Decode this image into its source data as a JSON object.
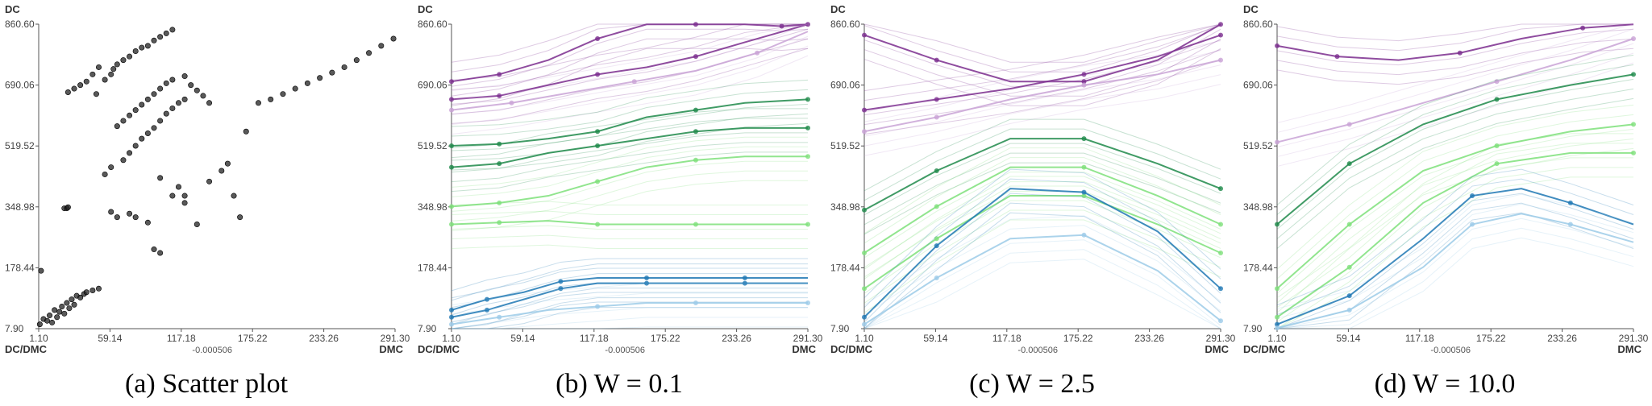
{
  "axes": {
    "y_top_label": "DC",
    "x_right_label": "DMC",
    "corner_label": "DC/DMC",
    "center_note": "-0.000506",
    "x_ticks": [
      "1.10",
      "59.14",
      "117.18",
      "175.22",
      "233.26",
      "291.30"
    ],
    "y_ticks": [
      "7.90",
      "178.44",
      "348.98",
      "519.52",
      "690.06",
      "860.60"
    ]
  },
  "colors": {
    "purple": "#7b2d8e",
    "purple_light": "#c9a3d6",
    "green": "#1e8a4a",
    "green_light": "#7ee07a",
    "blue": "#1f78b4",
    "blue_light": "#9ccbe8",
    "scatter": "#222222"
  },
  "chart_data": [
    {
      "type": "scatter",
      "caption": "(a) Scatter plot",
      "xlabel": "DMC",
      "ylabel": "DC",
      "xlim": [
        1.1,
        291.3
      ],
      "ylim": [
        7.9,
        860.6
      ],
      "points": [
        [
          2,
          20
        ],
        [
          5,
          35
        ],
        [
          8,
          30
        ],
        [
          10,
          45
        ],
        [
          12,
          25
        ],
        [
          14,
          60
        ],
        [
          16,
          40
        ],
        [
          18,
          55
        ],
        [
          20,
          70
        ],
        [
          22,
          50
        ],
        [
          24,
          80
        ],
        [
          26,
          65
        ],
        [
          28,
          90
        ],
        [
          30,
          75
        ],
        [
          32,
          100
        ],
        [
          35,
          95
        ],
        [
          38,
          105
        ],
        [
          40,
          110
        ],
        [
          45,
          115
        ],
        [
          50,
          120
        ],
        [
          3,
          170
        ],
        [
          22,
          345
        ],
        [
          24,
          345
        ],
        [
          25,
          348
        ],
        [
          25,
          670
        ],
        [
          30,
          680
        ],
        [
          35,
          690
        ],
        [
          40,
          700
        ],
        [
          45,
          720
        ],
        [
          48,
          665
        ],
        [
          50,
          740
        ],
        [
          55,
          705
        ],
        [
          60,
          720
        ],
        [
          62,
          735
        ],
        [
          65,
          748
        ],
        [
          70,
          760
        ],
        [
          75,
          770
        ],
        [
          80,
          785
        ],
        [
          85,
          795
        ],
        [
          90,
          800
        ],
        [
          95,
          815
        ],
        [
          100,
          825
        ],
        [
          105,
          835
        ],
        [
          110,
          845
        ],
        [
          65,
          575
        ],
        [
          70,
          590
        ],
        [
          75,
          605
        ],
        [
          80,
          620
        ],
        [
          85,
          635
        ],
        [
          90,
          650
        ],
        [
          95,
          665
        ],
        [
          100,
          680
        ],
        [
          105,
          695
        ],
        [
          110,
          705
        ],
        [
          120,
          715
        ],
        [
          125,
          690
        ],
        [
          130,
          675
        ],
        [
          135,
          660
        ],
        [
          140,
          640
        ],
        [
          55,
          440
        ],
        [
          60,
          460
        ],
        [
          70,
          480
        ],
        [
          75,
          500
        ],
        [
          80,
          520
        ],
        [
          85,
          540
        ],
        [
          90,
          555
        ],
        [
          95,
          570
        ],
        [
          100,
          590
        ],
        [
          105,
          610
        ],
        [
          110,
          625
        ],
        [
          115,
          640
        ],
        [
          120,
          650
        ],
        [
          60,
          335
        ],
        [
          65,
          320
        ],
        [
          75,
          330
        ],
        [
          80,
          320
        ],
        [
          90,
          305
        ],
        [
          100,
          430
        ],
        [
          110,
          380
        ],
        [
          115,
          405
        ],
        [
          120,
          360
        ],
        [
          130,
          300
        ],
        [
          140,
          420
        ],
        [
          150,
          450
        ],
        [
          155,
          470
        ],
        [
          160,
          380
        ],
        [
          165,
          320
        ],
        [
          95,
          230
        ],
        [
          100,
          220
        ],
        [
          120,
          380
        ],
        [
          170,
          560
        ],
        [
          180,
          640
        ],
        [
          190,
          650
        ],
        [
          200,
          665
        ],
        [
          210,
          680
        ],
        [
          220,
          695
        ],
        [
          230,
          710
        ],
        [
          240,
          725
        ],
        [
          250,
          740
        ],
        [
          260,
          760
        ],
        [
          270,
          780
        ],
        [
          280,
          800
        ],
        [
          290,
          820
        ],
        [
          295,
          835
        ]
      ]
    },
    {
      "type": "line",
      "caption": "(b) W = 0.1",
      "xlabel": "DMC",
      "ylabel": "DC",
      "xlim": [
        1.1,
        291.3
      ],
      "ylim": [
        7.9,
        860.6
      ],
      "series": [
        {
          "color": "purple",
          "x": [
            1.1,
            40,
            80,
            120,
            160,
            200,
            240,
            270,
            291.3
          ],
          "y": [
            700,
            720,
            760,
            820,
            860,
            860,
            860,
            855,
            860
          ]
        },
        {
          "color": "purple",
          "x": [
            1.1,
            40,
            80,
            120,
            160,
            200,
            240,
            291.3
          ],
          "y": [
            650,
            660,
            690,
            720,
            740,
            770,
            810,
            860
          ]
        },
        {
          "color": "purple_light",
          "x": [
            1.1,
            50,
            100,
            150,
            200,
            250,
            291.3
          ],
          "y": [
            620,
            640,
            670,
            700,
            730,
            780,
            840
          ]
        },
        {
          "color": "green",
          "x": [
            1.1,
            40,
            80,
            120,
            160,
            200,
            240,
            291.3
          ],
          "y": [
            520,
            525,
            540,
            560,
            600,
            620,
            640,
            650
          ]
        },
        {
          "color": "green",
          "x": [
            1.1,
            40,
            80,
            120,
            160,
            200,
            240,
            291.3
          ],
          "y": [
            460,
            470,
            500,
            520,
            540,
            560,
            570,
            570
          ]
        },
        {
          "color": "green_light",
          "x": [
            1.1,
            40,
            80,
            120,
            160,
            200,
            240,
            291.3
          ],
          "y": [
            350,
            360,
            380,
            420,
            460,
            480,
            490,
            490
          ]
        },
        {
          "color": "green_light",
          "x": [
            1.1,
            40,
            80,
            120,
            160,
            200,
            240,
            291.3
          ],
          "y": [
            300,
            305,
            310,
            300,
            300,
            300,
            300,
            300
          ]
        },
        {
          "color": "blue",
          "x": [
            1.1,
            30,
            60,
            90,
            120,
            160,
            200,
            240,
            291.3
          ],
          "y": [
            60,
            90,
            110,
            140,
            150,
            150,
            150,
            150,
            150
          ]
        },
        {
          "color": "blue",
          "x": [
            1.1,
            30,
            60,
            90,
            120,
            160,
            200,
            240,
            291.3
          ],
          "y": [
            40,
            60,
            90,
            120,
            135,
            135,
            135,
            135,
            135
          ]
        },
        {
          "color": "blue_light",
          "x": [
            1.1,
            40,
            80,
            120,
            160,
            200,
            240,
            291.3
          ],
          "y": [
            20,
            40,
            60,
            70,
            80,
            80,
            80,
            80
          ]
        }
      ]
    },
    {
      "type": "line",
      "caption": "(c) W = 2.5",
      "xlabel": "DMC",
      "ylabel": "DC",
      "xlim": [
        1.1,
        291.3
      ],
      "ylim": [
        7.9,
        860.6
      ],
      "series": [
        {
          "color": "purple",
          "x": [
            1.1,
            60,
            120,
            180,
            240,
            291.3
          ],
          "y": [
            830,
            760,
            700,
            700,
            760,
            860
          ]
        },
        {
          "color": "purple",
          "x": [
            1.1,
            60,
            120,
            180,
            240,
            291.3
          ],
          "y": [
            620,
            650,
            680,
            720,
            770,
            830
          ]
        },
        {
          "color": "purple_light",
          "x": [
            1.1,
            60,
            120,
            180,
            240,
            291.3
          ],
          "y": [
            560,
            600,
            650,
            690,
            720,
            760
          ]
        },
        {
          "color": "green",
          "x": [
            1.1,
            60,
            120,
            180,
            240,
            291.3
          ],
          "y": [
            340,
            450,
            540,
            540,
            470,
            400
          ]
        },
        {
          "color": "green_light",
          "x": [
            1.1,
            60,
            120,
            180,
            240,
            291.3
          ],
          "y": [
            220,
            350,
            460,
            460,
            380,
            300
          ]
        },
        {
          "color": "green_light",
          "x": [
            1.1,
            60,
            120,
            180,
            240,
            291.3
          ],
          "y": [
            120,
            260,
            380,
            380,
            300,
            220
          ]
        },
        {
          "color": "blue",
          "x": [
            1.1,
            60,
            120,
            180,
            240,
            291.3
          ],
          "y": [
            40,
            240,
            400,
            390,
            280,
            120
          ]
        },
        {
          "color": "blue_light",
          "x": [
            1.1,
            60,
            120,
            180,
            240,
            291.3
          ],
          "y": [
            20,
            150,
            260,
            270,
            170,
            30
          ]
        }
      ]
    },
    {
      "type": "line",
      "caption": "(d) W = 10.0",
      "xlabel": "DMC",
      "ylabel": "DC",
      "xlim": [
        1.1,
        291.3
      ],
      "ylim": [
        7.9,
        860.6
      ],
      "series": [
        {
          "color": "purple",
          "x": [
            1.1,
            50,
            100,
            150,
            200,
            250,
            291.3
          ],
          "y": [
            800,
            770,
            760,
            780,
            820,
            850,
            860
          ]
        },
        {
          "color": "purple_light",
          "x": [
            1.1,
            60,
            120,
            180,
            240,
            291.3
          ],
          "y": [
            530,
            580,
            640,
            700,
            760,
            820
          ]
        },
        {
          "color": "green",
          "x": [
            1.1,
            60,
            120,
            180,
            240,
            291.3
          ],
          "y": [
            300,
            470,
            580,
            650,
            690,
            720
          ]
        },
        {
          "color": "green_light",
          "x": [
            1.1,
            60,
            120,
            180,
            240,
            291.3
          ],
          "y": [
            120,
            300,
            450,
            520,
            560,
            580
          ]
        },
        {
          "color": "green_light",
          "x": [
            1.1,
            60,
            120,
            180,
            240,
            291.3
          ],
          "y": [
            40,
            180,
            360,
            470,
            500,
            500
          ]
        },
        {
          "color": "blue",
          "x": [
            1.1,
            60,
            120,
            160,
            200,
            240,
            291.3
          ],
          "y": [
            20,
            100,
            260,
            380,
            400,
            360,
            300
          ]
        },
        {
          "color": "blue_light",
          "x": [
            1.1,
            60,
            120,
            160,
            200,
            240,
            291.3
          ],
          "y": [
            10,
            60,
            180,
            300,
            330,
            300,
            250
          ]
        }
      ]
    }
  ]
}
